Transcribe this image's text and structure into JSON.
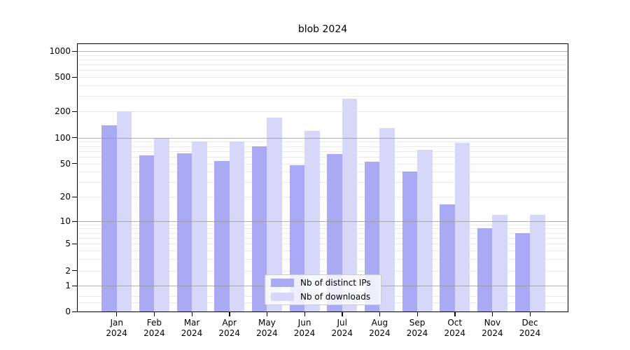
{
  "chart_data": {
    "type": "bar",
    "title": "blob 2024",
    "categories": [
      "Jan",
      "Feb",
      "Mar",
      "Apr",
      "May",
      "Jun",
      "Jul",
      "Aug",
      "Sep",
      "Oct",
      "Nov",
      "Dec"
    ],
    "category_year": "2024",
    "series": [
      {
        "name": "Nb of distinct IPs",
        "color": "#a9a9f4",
        "values": [
          140,
          62,
          66,
          54,
          80,
          48,
          65,
          53,
          40,
          16,
          8,
          7
        ]
      },
      {
        "name": "Nb of downloads",
        "color": "#d7d7fa",
        "values": [
          200,
          100,
          90,
          91,
          170,
          120,
          280,
          130,
          72,
          88,
          12,
          12
        ]
      }
    ],
    "y_scale": "symlog",
    "y_ticks": [
      0,
      1,
      2,
      5,
      10,
      20,
      50,
      100,
      200,
      500,
      1000
    ],
    "ylim": [
      0,
      1000
    ],
    "xlabel": "",
    "ylabel": "",
    "grid": true,
    "legend_position": "lower-center",
    "colors": {
      "major_grid": "#b0b0b0",
      "minor_grid": "#e9e9e9",
      "axis": "#000000",
      "background": "#ffffff"
    }
  }
}
